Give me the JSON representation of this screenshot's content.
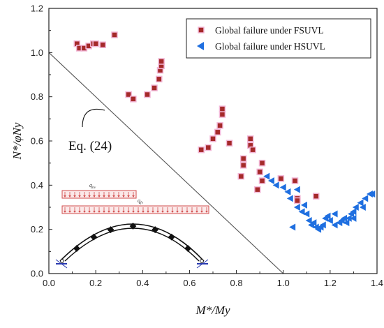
{
  "chart_data": {
    "type": "scatter",
    "xlabel": "M*/My",
    "ylabel": "N*/φNy",
    "xlim": [
      0.0,
      1.4
    ],
    "ylim": [
      0.0,
      1.2
    ],
    "xticks": [
      "0.0",
      "0.2",
      "0.4",
      "0.6",
      "0.8",
      "1.0",
      "1.2",
      "1.4"
    ],
    "yticks": [
      "0.0",
      "0.2",
      "0.4",
      "0.6",
      "0.8",
      "1.0",
      "1.2"
    ],
    "grid": false,
    "legend_position": "top-right",
    "series": [
      {
        "name": "Global failure under FSUVL",
        "marker": "square",
        "color": "#a52a2a",
        "points": [
          [
            0.12,
            1.04
          ],
          [
            0.13,
            1.02
          ],
          [
            0.15,
            1.02
          ],
          [
            0.17,
            1.03
          ],
          [
            0.19,
            1.04
          ],
          [
            0.2,
            1.04
          ],
          [
            0.23,
            1.035
          ],
          [
            0.28,
            1.08
          ],
          [
            0.34,
            0.81
          ],
          [
            0.36,
            0.79
          ],
          [
            0.42,
            0.81
          ],
          [
            0.45,
            0.84
          ],
          [
            0.47,
            0.88
          ],
          [
            0.475,
            0.92
          ],
          [
            0.48,
            0.94
          ],
          [
            0.48,
            0.96
          ],
          [
            0.65,
            0.56
          ],
          [
            0.68,
            0.57
          ],
          [
            0.7,
            0.61
          ],
          [
            0.72,
            0.64
          ],
          [
            0.73,
            0.67
          ],
          [
            0.74,
            0.72
          ],
          [
            0.74,
            0.745
          ],
          [
            0.77,
            0.59
          ],
          [
            0.82,
            0.44
          ],
          [
            0.83,
            0.49
          ],
          [
            0.83,
            0.52
          ],
          [
            0.86,
            0.61
          ],
          [
            0.86,
            0.58
          ],
          [
            0.87,
            0.56
          ],
          [
            0.89,
            0.38
          ],
          [
            0.9,
            0.46
          ],
          [
            0.91,
            0.5
          ],
          [
            0.91,
            0.42
          ],
          [
            0.99,
            0.43
          ],
          [
            1.05,
            0.42
          ],
          [
            1.06,
            0.34
          ],
          [
            1.06,
            0.33
          ],
          [
            1.14,
            0.35
          ]
        ]
      },
      {
        "name": "Global failure under HSUVL",
        "marker": "triangle-left",
        "color": "#1f6fe0",
        "points": [
          [
            0.93,
            0.44
          ],
          [
            0.95,
            0.42
          ],
          [
            0.97,
            0.4
          ],
          [
            1.0,
            0.39
          ],
          [
            1.02,
            0.37
          ],
          [
            1.03,
            0.34
          ],
          [
            1.06,
            0.3
          ],
          [
            1.06,
            0.38
          ],
          [
            1.04,
            0.21
          ],
          [
            1.08,
            0.28
          ],
          [
            1.09,
            0.31
          ],
          [
            1.1,
            0.27
          ],
          [
            1.11,
            0.24
          ],
          [
            1.12,
            0.22
          ],
          [
            1.13,
            0.23
          ],
          [
            1.14,
            0.21
          ],
          [
            1.15,
            0.2
          ],
          [
            1.16,
            0.21
          ],
          [
            1.17,
            0.22
          ],
          [
            1.18,
            0.25
          ],
          [
            1.19,
            0.26
          ],
          [
            1.2,
            0.24
          ],
          [
            1.22,
            0.27
          ],
          [
            1.22,
            0.22
          ],
          [
            1.24,
            0.23
          ],
          [
            1.25,
            0.24
          ],
          [
            1.26,
            0.25
          ],
          [
            1.27,
            0.23
          ],
          [
            1.28,
            0.25
          ],
          [
            1.29,
            0.27
          ],
          [
            1.3,
            0.28
          ],
          [
            1.31,
            0.3
          ],
          [
            1.33,
            0.32
          ],
          [
            1.35,
            0.34
          ],
          [
            1.37,
            0.36
          ],
          [
            1.38,
            0.36
          ],
          [
            1.34,
            0.3
          ],
          [
            1.3,
            0.25
          ]
        ]
      }
    ],
    "line": {
      "points": [
        [
          0.0,
          1.0
        ],
        [
          1.0,
          0.0
        ]
      ],
      "color": "#555555"
    },
    "annotations": [
      {
        "text": "Eq. (24)",
        "x": 0.2,
        "y": 0.62
      }
    ],
    "inset": {
      "load_labels": [
        "q",
        "q"
      ],
      "load_subscripts": [
        "hv",
        "fv"
      ]
    }
  }
}
